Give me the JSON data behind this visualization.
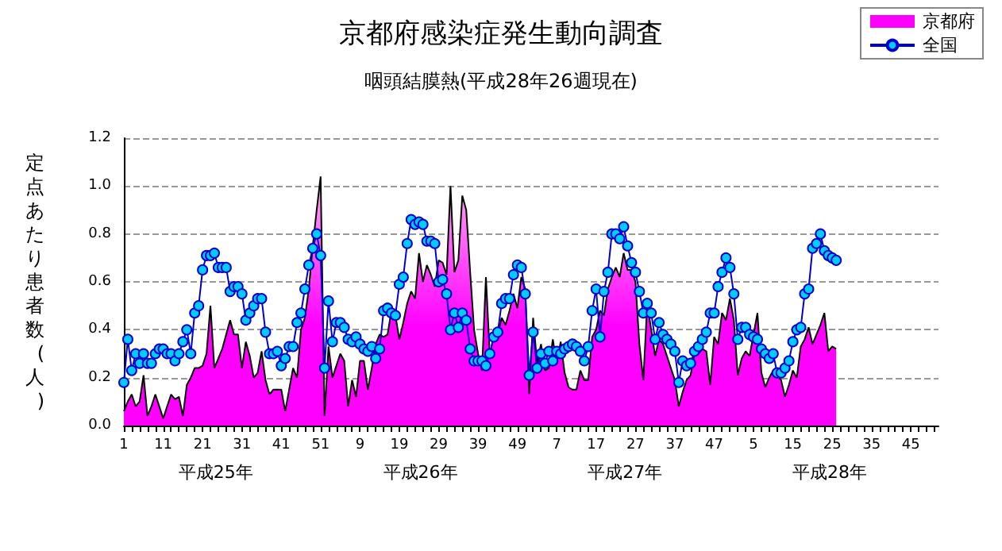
{
  "chart_data": {
    "type": "area",
    "title": "京都府感染症発生動向調査",
    "subtitle": "咽頭結膜熱(平成28年26週現在)",
    "ylabel": "定点あたり患者数(人)",
    "annotations": [
      "平成25年",
      "平成26年",
      "平成27年",
      "平成28年"
    ],
    "categories": [
      "1",
      null,
      null,
      null,
      null,
      null,
      null,
      null,
      null,
      null,
      "11",
      null,
      null,
      null,
      null,
      null,
      null,
      null,
      null,
      null,
      "21",
      null,
      null,
      null,
      null,
      null,
      null,
      null,
      null,
      null,
      "31",
      null,
      null,
      null,
      null,
      null,
      null,
      null,
      null,
      null,
      "41",
      null,
      null,
      null,
      null,
      null,
      null,
      null,
      null,
      null,
      "51",
      null,
      null,
      null,
      null,
      null,
      null,
      null,
      null,
      null,
      "9",
      null,
      null,
      null,
      null,
      null,
      null,
      null,
      null,
      null,
      "19",
      null,
      null,
      null,
      null,
      null,
      null,
      null,
      null,
      null,
      "29",
      null,
      null,
      null,
      null,
      null,
      null,
      null,
      null,
      null,
      "39",
      null,
      null,
      null,
      null,
      null,
      null,
      null,
      null,
      null,
      "49",
      null,
      null,
      null,
      null,
      null,
      null,
      null,
      null,
      null,
      "7",
      null,
      null,
      null,
      null,
      null,
      null,
      null,
      null,
      null,
      "17",
      null,
      null,
      null,
      null,
      null,
      null,
      null,
      null,
      null,
      "27",
      null,
      null,
      null,
      null,
      null,
      null,
      null,
      null,
      null,
      "37",
      null,
      null,
      null,
      null,
      null,
      null,
      null,
      null,
      null,
      "47",
      null,
      null,
      null,
      null,
      null,
      null,
      null,
      null,
      null,
      "5",
      null,
      null,
      null,
      null,
      null,
      null,
      null,
      null,
      null,
      "15",
      null,
      null,
      null,
      null,
      null,
      null,
      null,
      null,
      null,
      "25",
      null,
      null,
      null,
      null,
      null,
      null,
      null,
      null,
      null,
      "35",
      null,
      null,
      null,
      null,
      null,
      null,
      null,
      null,
      null,
      "45",
      null,
      null,
      null,
      null,
      null,
      null,
      null
    ],
    "series": [
      {
        "name": "京都府",
        "color": "#ff00ff",
        "values": [
          0.06,
          0.1,
          0.13,
          0.08,
          0.1,
          0.21,
          0.04,
          0.08,
          0.13,
          0.08,
          0.03,
          0.08,
          0.13,
          0.11,
          0.12,
          0.04,
          0.17,
          0.2,
          0.24,
          0.24,
          0.25,
          0.3,
          0.5,
          0.24,
          0.28,
          0.32,
          0.38,
          0.44,
          0.38,
          0.38,
          0.24,
          0.35,
          0.29,
          0.2,
          0.22,
          0.31,
          0.19,
          0.13,
          0.15,
          0.15,
          0.15,
          0.06,
          0.15,
          0.24,
          0.2,
          0.4,
          0.45,
          0.57,
          0.75,
          0.9,
          1.04,
          0.04,
          0.33,
          0.2,
          0.25,
          0.3,
          0.27,
          0.08,
          0.19,
          0.12,
          0.27,
          0.27,
          0.15,
          0.24,
          0.34,
          0.38,
          0.37,
          0.38,
          0.48,
          0.46,
          0.36,
          0.43,
          0.51,
          0.56,
          0.53,
          0.72,
          0.6,
          0.67,
          0.63,
          0.58,
          0.69,
          0.68,
          0.63,
          1.0,
          0.64,
          0.69,
          0.96,
          0.9,
          0.64,
          0.4,
          0.3,
          0.23,
          0.62,
          0.29,
          0.38,
          0.38,
          0.45,
          0.42,
          0.48,
          0.55,
          0.49,
          0.62,
          0.57,
          0.13,
          0.45,
          0.26,
          0.34,
          0.23,
          0.24,
          0.36,
          0.26,
          0.35,
          0.22,
          0.16,
          0.15,
          0.15,
          0.23,
          0.19,
          0.19,
          0.37,
          0.4,
          0.48,
          0.46,
          0.57,
          0.62,
          0.66,
          0.62,
          0.72,
          0.65,
          0.65,
          0.6,
          0.34,
          0.19,
          0.51,
          0.4,
          0.29,
          0.36,
          0.34,
          0.29,
          0.24,
          0.19,
          0.08,
          0.14,
          0.19,
          0.21,
          0.3,
          0.3,
          0.32,
          0.31,
          0.17,
          0.37,
          0.34,
          0.47,
          0.44,
          0.53,
          0.44,
          0.21,
          0.28,
          0.31,
          0.29,
          0.38,
          0.47,
          0.22,
          0.16,
          0.2,
          0.23,
          0.21,
          0.19,
          0.12,
          0.17,
          0.23,
          0.2,
          0.33,
          0.36,
          0.41,
          0.34,
          0.38,
          0.42,
          0.47,
          0.31,
          0.33,
          0.32,
          null,
          null,
          null,
          null,
          null,
          null,
          null,
          null,
          null,
          null,
          null,
          null,
          null,
          null,
          null,
          null,
          null,
          null,
          null,
          null,
          null,
          null,
          null,
          null,
          null,
          null
        ]
      },
      {
        "name": "全国",
        "type": "line",
        "color": "#0000cc",
        "marker": "circle",
        "values": [
          0.18,
          0.36,
          0.23,
          0.3,
          0.26,
          0.3,
          0.26,
          0.26,
          0.3,
          0.32,
          0.32,
          0.3,
          0.3,
          0.27,
          0.3,
          0.35,
          0.4,
          0.3,
          0.47,
          0.5,
          0.65,
          0.71,
          0.71,
          0.72,
          0.66,
          0.66,
          0.66,
          0.56,
          0.58,
          0.58,
          0.55,
          0.44,
          0.47,
          0.5,
          0.53,
          0.53,
          0.39,
          0.3,
          0.3,
          0.31,
          0.25,
          0.28,
          0.33,
          0.33,
          0.43,
          0.47,
          0.57,
          0.67,
          0.74,
          0.8,
          0.71,
          0.24,
          0.52,
          0.35,
          0.43,
          0.43,
          0.41,
          0.36,
          0.35,
          0.37,
          0.34,
          0.32,
          0.31,
          0.33,
          0.28,
          0.32,
          0.48,
          0.49,
          0.47,
          0.46,
          0.59,
          0.62,
          0.76,
          0.86,
          0.84,
          0.85,
          0.84,
          0.77,
          0.77,
          0.76,
          0.6,
          0.61,
          0.55,
          0.4,
          0.47,
          0.41,
          0.47,
          0.44,
          0.32,
          0.27,
          0.27,
          0.27,
          0.25,
          0.3,
          0.37,
          0.39,
          0.51,
          0.53,
          0.53,
          0.63,
          0.67,
          0.66,
          0.55,
          0.21,
          0.39,
          0.24,
          0.3,
          0.26,
          0.31,
          0.27,
          0.31,
          0.3,
          0.32,
          0.33,
          0.34,
          0.33,
          0.31,
          0.27,
          0.33,
          0.48,
          0.57,
          0.37,
          0.56,
          0.64,
          0.8,
          0.8,
          0.78,
          0.83,
          0.75,
          0.68,
          0.64,
          0.56,
          0.47,
          0.51,
          0.47,
          0.36,
          0.43,
          0.38,
          0.36,
          0.34,
          0.31,
          0.18,
          0.27,
          0.25,
          0.26,
          0.31,
          0.33,
          0.36,
          0.39,
          0.47,
          0.47,
          0.58,
          0.64,
          0.7,
          0.66,
          0.55,
          0.36,
          0.41,
          0.41,
          0.38,
          0.37,
          0.36,
          0.32,
          0.3,
          0.28,
          0.3,
          0.22,
          0.22,
          0.24,
          0.27,
          0.35,
          0.4,
          0.41,
          0.55,
          0.57,
          0.74,
          0.76,
          0.8,
          0.73,
          0.71,
          0.7,
          0.69,
          null,
          null,
          null,
          null,
          null,
          null,
          null,
          null,
          null,
          null,
          null,
          null,
          null,
          null,
          null,
          null,
          null,
          null,
          null,
          null,
          null,
          null,
          null,
          null,
          null,
          null
        ]
      }
    ],
    "ylim": [
      0,
      1.2
    ],
    "yticks": [
      {
        "value": 0,
        "label": "0.0"
      },
      {
        "value": 0.2,
        "label": "0.2"
      },
      {
        "value": 0.4,
        "label": "0.4"
      },
      {
        "value": 0.6,
        "label": "0.6"
      },
      {
        "value": 0.8,
        "label": "0.8"
      },
      {
        "value": 1,
        "label": "1.0"
      },
      {
        "value": 1.2,
        "label": "1.2"
      }
    ],
    "grid": "y",
    "legend": "top right"
  }
}
